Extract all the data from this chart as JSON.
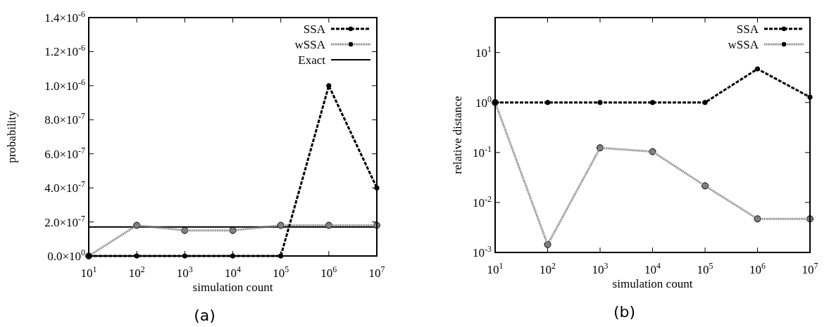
{
  "chart_data": [
    {
      "type": "line",
      "xlabel": "simulation count",
      "ylabel": "probability",
      "annotations": [
        "(a)"
      ],
      "legend": "top right",
      "log": "x",
      "x": [
        10,
        100,
        1000,
        10000,
        100000,
        1000000,
        10000000
      ],
      "xlim": [
        10,
        10000000
      ],
      "xticks": [
        {
          "value": 10,
          "label": "10$^{1}$"
        },
        {
          "value": 100,
          "label": "10$^{2}$"
        },
        {
          "value": 1000,
          "label": "10$^{3}$"
        },
        {
          "value": 10000,
          "label": "10$^{4}$"
        },
        {
          "value": 100000,
          "label": "10$^{5}$"
        },
        {
          "value": 1000000,
          "label": "10$^{6}$"
        },
        {
          "value": 10000000,
          "label": "10$^{7}$"
        }
      ],
      "ylim": [
        0,
        1.4e-06
      ],
      "yticks": [
        {
          "value": 0,
          "label": "0.0×10$^{0}$"
        },
        {
          "value": 2e-07,
          "label": "2.0×10$^{-7}$"
        },
        {
          "value": 4e-07,
          "label": "4.0×10$^{-7}$"
        },
        {
          "value": 6e-07,
          "label": "6.0×10$^{-7}$"
        },
        {
          "value": 8e-07,
          "label": "8.0×10$^{-7}$"
        },
        {
          "value": 1e-06,
          "label": "1.0×10$^{-6}$"
        },
        {
          "value": 1.2e-06,
          "label": "1.2×10$^{-6}$"
        },
        {
          "value": 1.4e-06,
          "label": "1.4×10$^{-6}$"
        }
      ],
      "series": [
        {
          "name": "SSA",
          "color": "#000000",
          "line_style": "dashed",
          "marker": "circle",
          "values": [
            0,
            0,
            0,
            0,
            0,
            1e-06,
            4e-07
          ]
        },
        {
          "name": "wSSA",
          "color": "#808080",
          "line_style": "dotted",
          "marker": "circle",
          "values": [
            0,
            1.8e-07,
            1.5e-07,
            1.5e-07,
            1.8e-07,
            1.8e-07,
            1.8e-07
          ]
        },
        {
          "name": "Exact",
          "color": "#000000",
          "line_style": "solid",
          "marker": "none",
          "values": [
            1.7e-07,
            1.7e-07,
            1.7e-07,
            1.7e-07,
            1.7e-07,
            1.7e-07,
            1.7e-07
          ]
        }
      ]
    },
    {
      "type": "line",
      "xlabel": "simulation count",
      "ylabel": "relative distance",
      "annotations": [
        "(b)"
      ],
      "legend": "top right",
      "log": "xy",
      "x": [
        10,
        100,
        1000,
        10000,
        100000,
        1000000,
        10000000
      ],
      "xlim": [
        10,
        10000000
      ],
      "xticks": [
        {
          "value": 10,
          "label": "10$^{1}$"
        },
        {
          "value": 100,
          "label": "10$^{2}$"
        },
        {
          "value": 1000,
          "label": "10$^{3}$"
        },
        {
          "value": 10000,
          "label": "10$^{4}$"
        },
        {
          "value": 100000,
          "label": "10$^{5}$"
        },
        {
          "value": 1000000,
          "label": "10$^{6}$"
        },
        {
          "value": 10000000,
          "label": "10$^{7}$"
        }
      ],
      "ylim": [
        0.001,
        50
      ],
      "yticks": [
        {
          "value": 0.001,
          "label": "10$^{-3}$"
        },
        {
          "value": 0.01,
          "label": "10$^{-2}$"
        },
        {
          "value": 0.1,
          "label": "10$^{-1}$"
        },
        {
          "value": 1,
          "label": "10$^{0}$"
        },
        {
          "value": 10,
          "label": "10$^{1}$"
        }
      ],
      "series": [
        {
          "name": "SSA",
          "color": "#000000",
          "line_style": "dashed",
          "marker": "circle",
          "values": [
            1,
            1,
            1,
            1,
            1,
            4.7,
            1.28
          ]
        },
        {
          "name": "wSSA",
          "color": "#808080",
          "line_style": "dotted",
          "marker": "circle",
          "values": [
            1,
            0.00144,
            0.124,
            0.104,
            0.0215,
            0.0047,
            0.0047
          ]
        }
      ]
    }
  ]
}
